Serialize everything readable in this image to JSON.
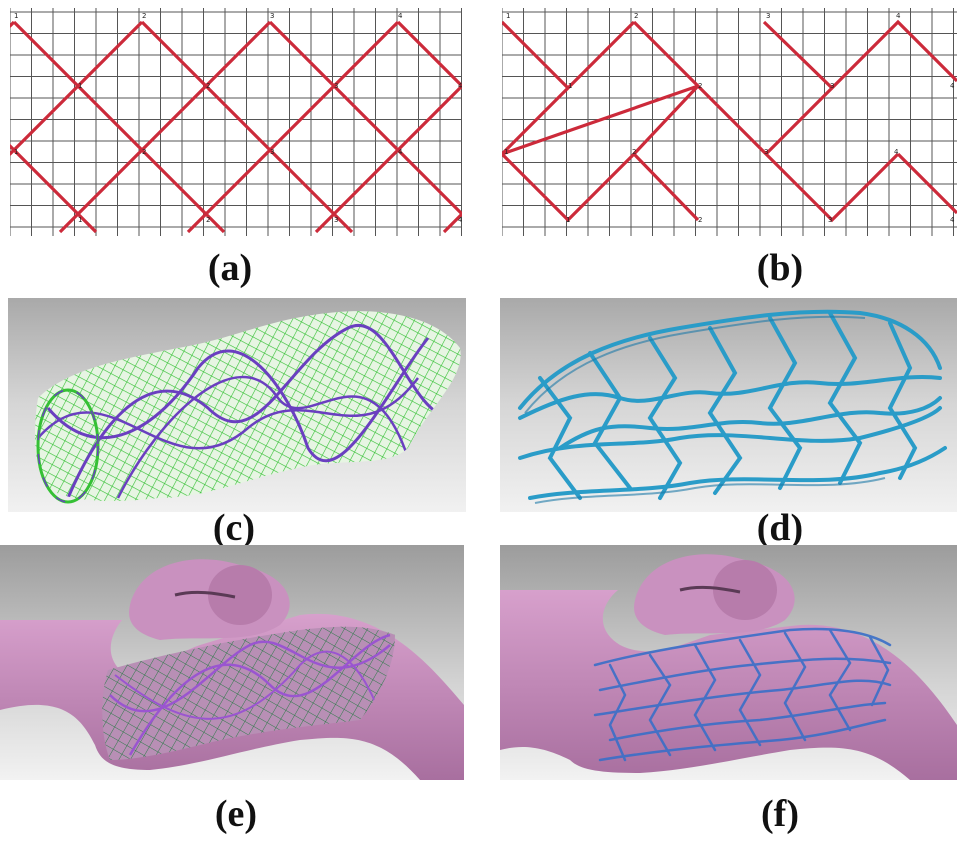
{
  "captions": {
    "a": "(a)",
    "b": "(b)",
    "c": "(c)",
    "d": "(d)",
    "e": "(e)",
    "f": "(f)"
  },
  "pattern_a": {
    "top_labels": [
      "1",
      "2",
      "3",
      "4"
    ],
    "upper_mid_labels": [
      "1",
      "2",
      "3",
      "4"
    ],
    "lower_mid_labels": [
      "1",
      "2",
      "3",
      "4"
    ],
    "bottom_labels": [
      "1",
      "2",
      "3",
      "4"
    ]
  },
  "pattern_b": {
    "top_labels": [
      "1",
      "2",
      "3",
      "4"
    ],
    "upper_mid_labels": [
      "1",
      "2",
      "3",
      "4"
    ],
    "lower_mid_labels": [
      "1",
      "2",
      "3",
      "4"
    ],
    "bottom_labels": [
      "1",
      "2",
      "3",
      "4"
    ]
  },
  "colors": {
    "strut_red": "#cc2a3a",
    "grid": "#555555",
    "mesh_green": "#35c035",
    "helix_purple": "#6a3fc0",
    "stent_blue": "#2a9cc8",
    "vessel_pink": "#c98cbd",
    "render_bg": "#c8c8c8"
  }
}
